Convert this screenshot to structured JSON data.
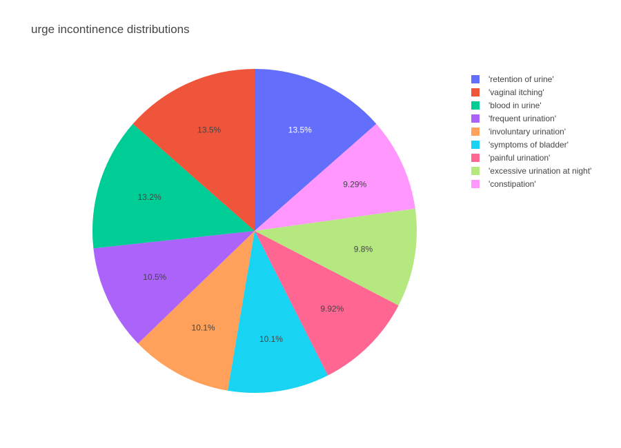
{
  "chart_data": {
    "type": "pie",
    "title": "urge incontinence distributions",
    "direction": "clockwise",
    "start_angle_deg": 90,
    "legend_position": "top-right",
    "slices": [
      {
        "name": "'retention of urine'",
        "label": "13.5%",
        "value": 13.5,
        "color": "#636efa",
        "text_color": "#ffffff"
      },
      {
        "name": "'constipation'",
        "label": "9.29%",
        "value": 9.29,
        "color": "#ff97ff",
        "text_color": "#444444"
      },
      {
        "name": "'excessive urination at night'",
        "label": "9.8%",
        "value": 9.8,
        "color": "#b6e880",
        "text_color": "#444444"
      },
      {
        "name": "'painful urination'",
        "label": "9.92%",
        "value": 9.92,
        "color": "#ff6692",
        "text_color": "#444444"
      },
      {
        "name": "'symptoms of bladder'",
        "label": "10.1%",
        "value": 10.1,
        "color": "#19d3f3",
        "text_color": "#444444"
      },
      {
        "name": "'involuntary urination'",
        "label": "10.1%",
        "value": 10.1,
        "color": "#ffa15a",
        "text_color": "#444444"
      },
      {
        "name": "'frequent urination'",
        "label": "10.5%",
        "value": 10.5,
        "color": "#ab63fa",
        "text_color": "#444444"
      },
      {
        "name": "'blood in urine'",
        "label": "13.2%",
        "value": 13.2,
        "color": "#00cc96",
        "text_color": "#444444"
      },
      {
        "name": "'vaginal itching'",
        "label": "13.5%",
        "value": 13.5,
        "color": "#ef553b",
        "text_color": "#444444"
      }
    ],
    "legend": [
      {
        "name": "'retention of urine'",
        "color": "#636efa"
      },
      {
        "name": "'vaginal itching'",
        "color": "#ef553b"
      },
      {
        "name": "'blood in urine'",
        "color": "#00cc96"
      },
      {
        "name": "'frequent urination'",
        "color": "#ab63fa"
      },
      {
        "name": "'involuntary urination'",
        "color": "#ffa15a"
      },
      {
        "name": "'symptoms of bladder'",
        "color": "#19d3f3"
      },
      {
        "name": "'painful urination'",
        "color": "#ff6692"
      },
      {
        "name": "'excessive urination at night'",
        "color": "#b6e880"
      },
      {
        "name": "'constipation'",
        "color": "#ff97ff"
      }
    ]
  }
}
